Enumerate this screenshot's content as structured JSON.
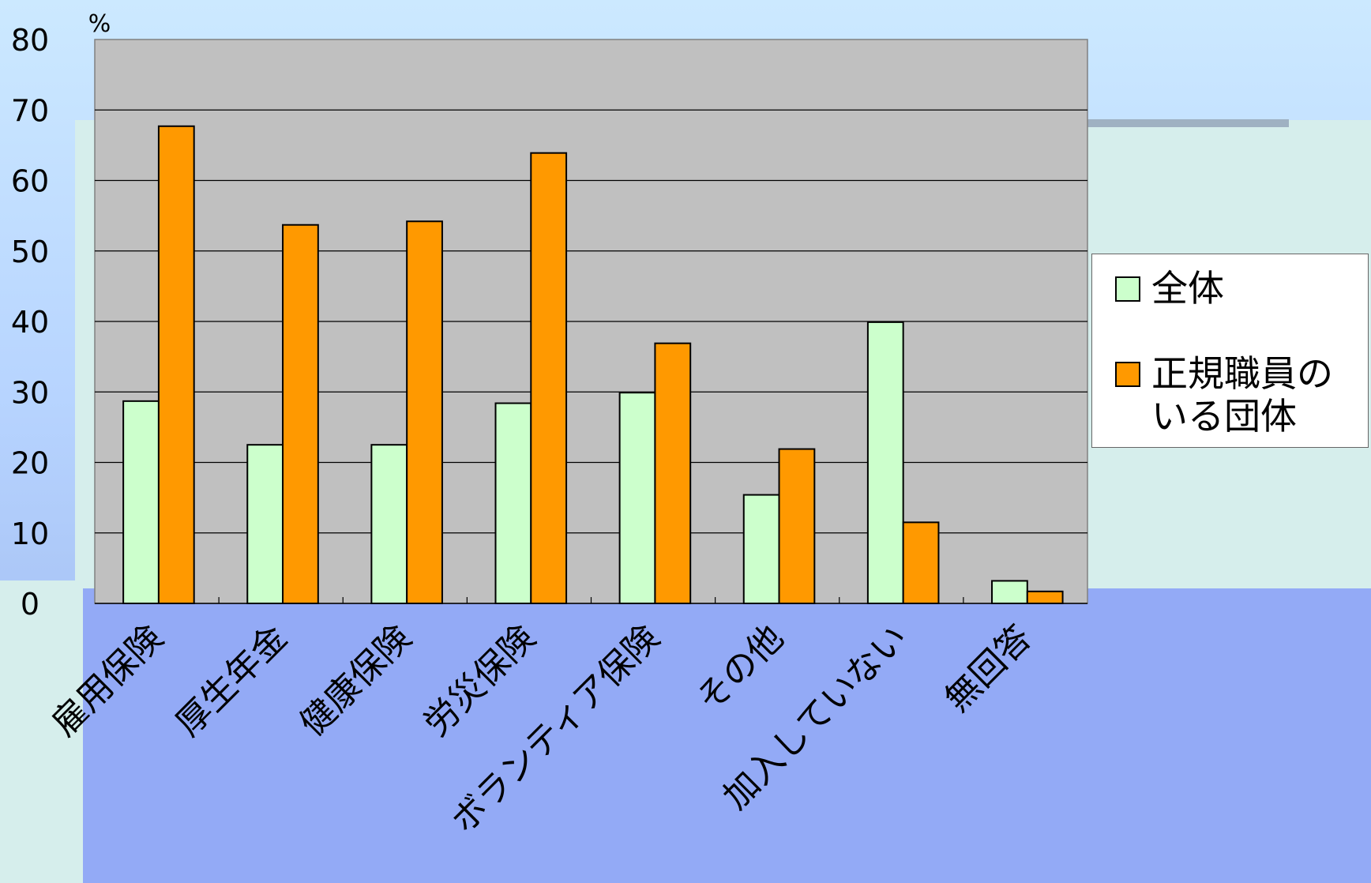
{
  "chart_data": {
    "type": "bar",
    "title": "",
    "xlabel": "",
    "ylabel": "%",
    "ylim": [
      0,
      80
    ],
    "yticks": [
      0,
      10,
      20,
      30,
      40,
      50,
      60,
      70,
      80
    ],
    "categories": [
      "雇用保険",
      "厚生年金",
      "健康保険",
      "労災保険",
      "ボランティア保険",
      "その他",
      "加入していない",
      "無回答"
    ],
    "series": [
      {
        "name": "全体",
        "color": "#ccffcc",
        "values": [
          28.7,
          22.5,
          22.5,
          28.4,
          29.9,
          15.4,
          39.9,
          3.2
        ]
      },
      {
        "name": "正規職員のいる団体",
        "color": "#ff9900",
        "values": [
          67.7,
          53.7,
          54.2,
          63.9,
          36.9,
          21.9,
          11.5,
          1.7
        ]
      }
    ],
    "grid": true,
    "plot_background": "#c0c0c0",
    "legend_position": "right"
  }
}
